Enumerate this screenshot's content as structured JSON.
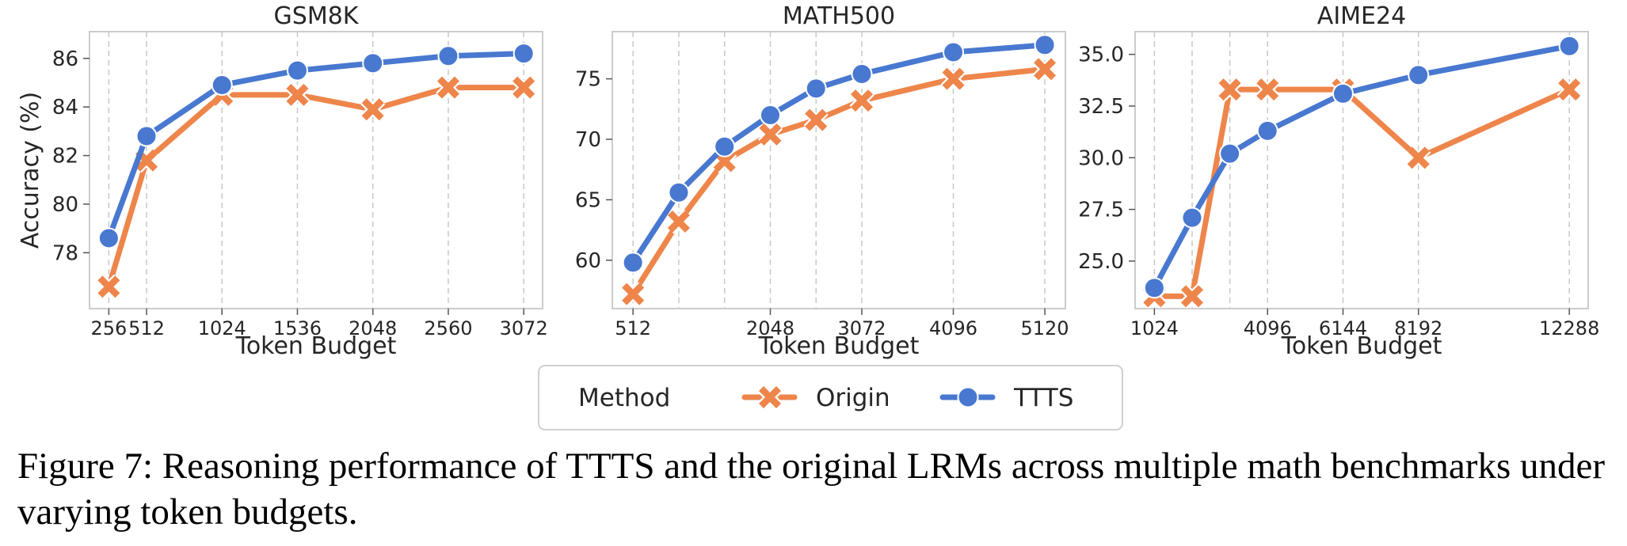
{
  "chart_data": [
    {
      "type": "line",
      "title": "GSM8K",
      "xlabel": "Token Budget",
      "ylabel": "Accuracy (%)",
      "x": [
        256,
        512,
        1024,
        1536,
        2048,
        2560,
        3072
      ],
      "x_ticks": [
        256,
        512,
        1024,
        1536,
        2048,
        2560,
        3072
      ],
      "x_tick_labels": [
        "256",
        "512",
        "1024",
        "1536",
        "2048",
        "2560",
        "3072"
      ],
      "y_ticks": [
        78,
        80,
        82,
        84,
        86
      ],
      "y_tick_labels": [
        "78",
        "80",
        "82",
        "84",
        "86"
      ],
      "xlim": [
        125,
        3200
      ],
      "ylim": [
        75.7,
        87.1
      ],
      "series": [
        {
          "name": "Origin",
          "values": [
            76.6,
            81.8,
            84.5,
            84.5,
            83.9,
            84.8,
            84.8
          ]
        },
        {
          "name": "TTTS",
          "values": [
            78.6,
            82.8,
            84.9,
            85.5,
            85.8,
            86.1,
            86.2
          ]
        }
      ],
      "grid": "x-dashed"
    },
    {
      "type": "line",
      "title": "MATH500",
      "xlabel": "Token Budget",
      "ylabel": "",
      "x": [
        512,
        1024,
        1536,
        2048,
        2560,
        3072,
        4096,
        5120
      ],
      "x_ticks": [
        512,
        2048,
        3072,
        4096,
        5120
      ],
      "x_tick_labels": [
        "512",
        "2048",
        "3072",
        "4096",
        "5120"
      ],
      "y_ticks": [
        60,
        65,
        70,
        75
      ],
      "y_tick_labels": [
        "60",
        "65",
        "70",
        "75"
      ],
      "xlim": [
        280,
        5350
      ],
      "ylim": [
        56.0,
        78.9
      ],
      "series": [
        {
          "name": "Origin",
          "values": [
            57.2,
            63.2,
            68.2,
            70.4,
            71.6,
            73.2,
            75.0,
            75.8
          ]
        },
        {
          "name": "TTTS",
          "values": [
            59.8,
            65.6,
            69.4,
            72.0,
            74.2,
            75.4,
            77.2,
            77.8
          ]
        }
      ],
      "grid": "x-dashed"
    },
    {
      "type": "line",
      "title": "AIME24",
      "xlabel": "Token Budget",
      "ylabel": "",
      "x": [
        1024,
        2048,
        3072,
        4096,
        6144,
        8192,
        12288
      ],
      "x_ticks": [
        1024,
        4096,
        6144,
        8192,
        12288
      ],
      "x_tick_labels": [
        "1024",
        "4096",
        "6144",
        "8192",
        "12288"
      ],
      "y_ticks": [
        25.0,
        27.5,
        30.0,
        32.5,
        35.0
      ],
      "y_tick_labels": [
        "25.0",
        "27.5",
        "30.0",
        "32.5",
        "35.0"
      ],
      "xlim": [
        500,
        12800
      ],
      "ylim": [
        22.7,
        36.1
      ],
      "series": [
        {
          "name": "Origin",
          "values": [
            23.3,
            23.3,
            33.3,
            33.3,
            33.3,
            30.0,
            33.3
          ]
        },
        {
          "name": "TTTS",
          "values": [
            23.7,
            27.1,
            30.2,
            31.3,
            33.1,
            34.0,
            35.4
          ]
        }
      ],
      "grid": "x-dashed"
    }
  ],
  "legend": {
    "title": "Method",
    "entries": [
      {
        "label": "Origin",
        "color": "#ee854a",
        "marker": "x"
      },
      {
        "label": "TTTS",
        "color": "#4878d0",
        "marker": "o"
      }
    ],
    "placement": "bottom-center"
  },
  "colors": {
    "origin": "#ee854a",
    "ttts": "#4878d0",
    "axes": "#cccccc",
    "grid": "#c8c8c8"
  },
  "caption": "Figure 7: Reasoning performance of TTTS and the original LRMs across multiple math benchmarks under varying token budgets."
}
